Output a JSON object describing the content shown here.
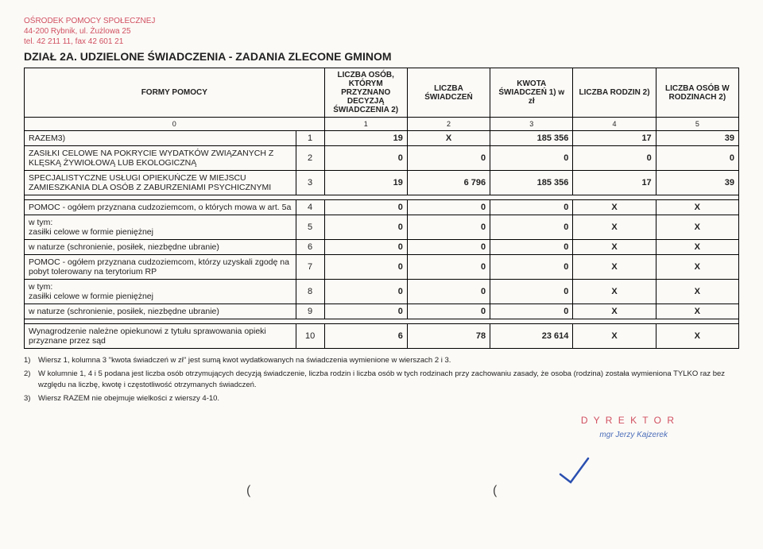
{
  "letterhead": {
    "line1": "OŚRODEK POMOCY SPOŁECZNEJ",
    "line2": "44-200 Rybnik, ul. Żużlowa 25",
    "line3": "tel. 42 211 11, fax 42 601 21"
  },
  "title": "DZIAŁ 2A.  UDZIELONE ŚWIADCZENIA - ZADANIA ZLECONE GMINOM",
  "columns": {
    "c0": "FORMY POMOCY",
    "c1": "LICZBA OSÓB, KTÓRYM PRZYZNANO DECYZJĄ ŚWIADCZENIA 2)",
    "c2": "LICZBA ŚWIADCZEŃ",
    "c3": "KWOTA ŚWIADCZEŃ 1) w zł",
    "c4": "LICZBA RODZIN 2)",
    "c5": "LICZBA OSÓB W RODZINACH 2)"
  },
  "colnums": {
    "c0": "0",
    "c1": "1",
    "c2": "2",
    "c3": "3",
    "c4": "4",
    "c5": "5"
  },
  "rows": [
    {
      "label": "RAZEM3)",
      "idx": "1",
      "v1": "19",
      "v2": "X",
      "v3": "185 356",
      "v4": "17",
      "v5": "39"
    },
    {
      "label": "ZASIŁKI CELOWE NA POKRYCIE WYDATKÓW ZWIĄZANYCH Z KLĘSKĄ ŻYWIOŁOWĄ LUB EKOLOGICZNĄ",
      "idx": "2",
      "v1": "0",
      "v2": "0",
      "v3": "0",
      "v4": "0",
      "v5": "0"
    },
    {
      "label": "SPECJALISTYCZNE USŁUGI OPIEKUŃCZE W MIEJSCU ZAMIESZKANIA DLA OSÓB Z ZABURZENIAMI PSYCHICZNYMI",
      "idx": "3",
      "v1": "19",
      "v2": "6 796",
      "v3": "185 356",
      "v4": "17",
      "v5": "39"
    }
  ],
  "rows2": [
    {
      "label": "POMOC - ogółem przyznana cudzoziemcom, o których mowa w art. 5a",
      "idx": "4",
      "v1": "0",
      "v2": "0",
      "v3": "0",
      "v4": "X",
      "v5": "X"
    },
    {
      "label": "w tym:\n    zasiłki celowe w formie pieniężnej",
      "idx": "5",
      "v1": "0",
      "v2": "0",
      "v3": "0",
      "v4": "X",
      "v5": "X"
    },
    {
      "label": "    w naturze (schronienie, posiłek, niezbędne ubranie)",
      "idx": "6",
      "v1": "0",
      "v2": "0",
      "v3": "0",
      "v4": "X",
      "v5": "X"
    },
    {
      "label": "POMOC - ogółem przyznana cudzoziemcom, którzy uzyskali zgodę na pobyt tolerowany na terytorium RP",
      "idx": "7",
      "v1": "0",
      "v2": "0",
      "v3": "0",
      "v4": "X",
      "v5": "X"
    },
    {
      "label": "w tym:\n    zasiłki celowe w formie pieniężnej",
      "idx": "8",
      "v1": "0",
      "v2": "0",
      "v3": "0",
      "v4": "X",
      "v5": "X"
    },
    {
      "label": "    w naturze (schronienie, posiłek, niezbędne ubranie)",
      "idx": "9",
      "v1": "0",
      "v2": "0",
      "v3": "0",
      "v4": "X",
      "v5": "X"
    }
  ],
  "rows3": [
    {
      "label": "Wynagrodzenie należne opiekunowi z tytułu sprawowania opieki przyznane przez sąd",
      "idx": "10",
      "v1": "6",
      "v2": "78",
      "v3": "23 614",
      "v4": "X",
      "v5": "X"
    }
  ],
  "footnotes": {
    "f1n": "1)",
    "f1": "Wiersz 1, kolumna 3 \"kwota świadczeń w zł\" jest sumą kwot wydatkowanych na świadczenia wymienione w wierszach 2 i 3.",
    "f2n": "2)",
    "f2": "W kolumnie 1, 4 i 5 podana jest liczba osób otrzymujących decyzją świadczenie, liczba rodzin i liczba osób w tych rodzinach przy zachowaniu zasady, że osoba (rodzina) została wymieniona TYLKO raz bez względu na liczbę, kwotę i częstotliwość otrzymanych świadczeń.",
    "f3n": "3)",
    "f3": "Wiersz RAZEM nie obejmuje wielkości z wierszy 4-10."
  },
  "signature": {
    "dyrektor": "D Y R E K T O R",
    "name": "mgr Jerzy Kajzerek"
  }
}
